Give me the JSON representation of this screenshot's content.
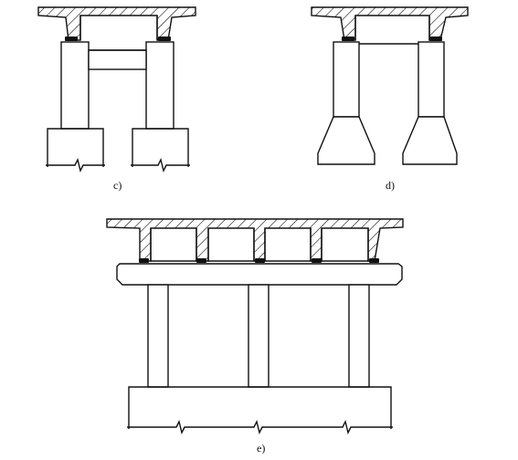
{
  "figure": {
    "captions": {
      "c": "c)",
      "d": "d)",
      "e": "e)"
    }
  }
}
